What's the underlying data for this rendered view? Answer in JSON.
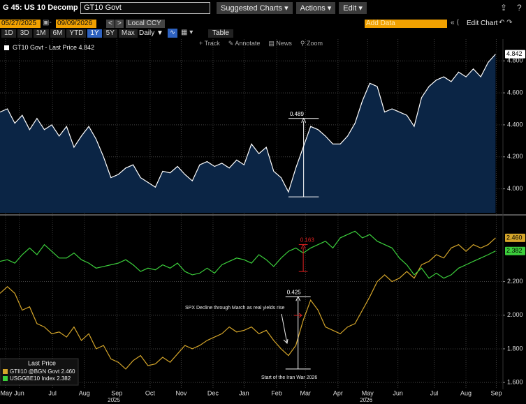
{
  "header": {
    "title": "G 45: US 10 Decomp",
    "security": "GT10 Govt",
    "menus": [
      "Suggested Charts",
      "Actions",
      "Edit"
    ]
  },
  "controls": {
    "start_date": "05/27/2025",
    "end_date": "09/09/2026",
    "currency": "Local CCY",
    "periods": [
      "1D",
      "3D",
      "1M",
      "6M",
      "YTD",
      "1Y",
      "5Y",
      "Max"
    ],
    "frequency": "Daily",
    "table": "Table",
    "add_data": "Add Data",
    "edit_chart": "Edit Chart",
    "tools": [
      "Track",
      "Annotate",
      "News",
      "Zoom"
    ]
  },
  "chart_data": [
    {
      "type": "area",
      "xlim": [
        0,
        68
      ],
      "ylim": [
        3.85,
        4.91
      ],
      "yticks": [
        {
          "value": 4.0,
          "label": "4.000"
        },
        {
          "value": 4.2,
          "label": "4.200"
        },
        {
          "value": 4.4,
          "label": "4.400"
        },
        {
          "value": 4.6,
          "label": "4.600"
        },
        {
          "value": 4.8,
          "label": "4.800"
        }
      ],
      "grid": true,
      "area_color": "#0b2545",
      "series": [
        {
          "name": "GT10 Govt - Last Price",
          "color": "#ffffff",
          "values": [
            4.48,
            4.5,
            4.41,
            4.46,
            4.37,
            4.44,
            4.37,
            4.4,
            4.33,
            4.39,
            4.26,
            4.33,
            4.39,
            4.31,
            4.2,
            4.07,
            4.09,
            4.13,
            4.15,
            4.07,
            4.04,
            4.01,
            4.11,
            4.1,
            4.14,
            4.09,
            4.05,
            4.15,
            4.17,
            4.14,
            4.16,
            4.13,
            4.18,
            4.15,
            4.28,
            4.22,
            4.26,
            4.11,
            4.07,
            3.98,
            4.13,
            4.26,
            4.39,
            4.37,
            4.33,
            4.28,
            4.28,
            4.33,
            4.41,
            4.55,
            4.66,
            4.64,
            4.48,
            4.5,
            4.48,
            4.46,
            4.39,
            4.57,
            4.64,
            4.68,
            4.7,
            4.67,
            4.73,
            4.7,
            4.75,
            4.7,
            4.79,
            4.842
          ]
        }
      ],
      "annotations": [
        {
          "text": "0.489",
          "x0": 39,
          "x1": 43.1,
          "y0": 3.95,
          "y1": 4.44,
          "color": "#ffffff"
        }
      ]
    },
    {
      "type": "line",
      "xlim": [
        0,
        68
      ],
      "ylim": [
        1.53,
        2.58
      ],
      "yticks": [
        {
          "value": 1.6,
          "label": "1.600"
        },
        {
          "value": 1.8,
          "label": "1.800"
        },
        {
          "value": 2.0,
          "label": "2.000"
        },
        {
          "value": 2.2,
          "label": "2.200"
        }
      ],
      "grid": true,
      "legend_title": "Last Price",
      "xticks": [
        {
          "value": 0.75,
          "label": "May"
        },
        {
          "value": 2.6,
          "label": "Jun"
        },
        {
          "value": 7.1,
          "label": "Jul"
        },
        {
          "value": 11.4,
          "label": "Aug"
        },
        {
          "value": 15.8,
          "label": "Sep"
        },
        {
          "value": 20.3,
          "label": "Oct"
        },
        {
          "value": 24.5,
          "label": "Nov"
        },
        {
          "value": 28.8,
          "label": "Dec"
        },
        {
          "value": 33,
          "label": "Jan"
        },
        {
          "value": 37.4,
          "label": "Feb"
        },
        {
          "value": 41.3,
          "label": "Mar"
        },
        {
          "value": 45.7,
          "label": "Apr"
        },
        {
          "value": 49.7,
          "label": "May"
        },
        {
          "value": 53.8,
          "label": "Jun"
        },
        {
          "value": 58.7,
          "label": "Jul"
        },
        {
          "value": 63,
          "label": "Aug"
        },
        {
          "value": 67.1,
          "label": "Sep"
        }
      ],
      "year_ticks": [
        {
          "value": 15.4,
          "label": "2025"
        },
        {
          "value": 49.5,
          "label": "2026"
        }
      ],
      "series": [
        {
          "name": "GTII10 @BGN Govt",
          "color": "#d4a52a",
          "values": [
            2.13,
            2.17,
            2.13,
            2.03,
            2.05,
            1.95,
            1.93,
            1.89,
            1.9,
            1.87,
            1.93,
            1.85,
            1.89,
            1.8,
            1.82,
            1.74,
            1.72,
            1.68,
            1.73,
            1.76,
            1.7,
            1.71,
            1.75,
            1.72,
            1.77,
            1.82,
            1.8,
            1.82,
            1.85,
            1.87,
            1.89,
            1.93,
            1.9,
            1.91,
            1.93,
            1.89,
            1.91,
            1.85,
            1.8,
            1.76,
            1.82,
            1.97,
            2.09,
            2.03,
            1.93,
            1.91,
            1.89,
            1.93,
            1.95,
            2.03,
            2.11,
            2.2,
            2.24,
            2.2,
            2.22,
            2.26,
            2.22,
            2.3,
            2.32,
            2.36,
            2.34,
            2.4,
            2.42,
            2.38,
            2.42,
            2.4,
            2.42,
            2.46
          ],
          "value_labels": [
            null,
            null,
            null,
            null,
            null,
            null,
            null,
            null,
            null,
            null,
            null,
            null,
            null,
            null,
            null,
            null,
            null,
            null,
            null,
            null,
            null,
            null,
            null,
            null,
            null,
            null,
            null,
            null,
            null,
            null,
            null,
            null,
            null,
            null,
            null,
            null,
            null,
            null,
            null,
            null,
            null,
            null,
            null,
            null,
            null,
            null,
            null,
            null,
            null,
            null,
            null,
            null,
            null,
            null,
            null,
            null,
            null,
            null,
            null,
            null,
            null,
            null,
            null,
            null,
            null,
            null,
            null,
            "2.460"
          ]
        },
        {
          "name": "USGGBE10 Index",
          "color": "#3ccf3c",
          "values": [
            2.32,
            2.33,
            2.31,
            2.36,
            2.4,
            2.36,
            2.42,
            2.38,
            2.34,
            2.34,
            2.37,
            2.33,
            2.31,
            2.28,
            2.29,
            2.3,
            2.31,
            2.33,
            2.3,
            2.26,
            2.28,
            2.27,
            2.3,
            2.28,
            2.31,
            2.26,
            2.24,
            2.25,
            2.28,
            2.25,
            2.3,
            2.32,
            2.34,
            2.33,
            2.31,
            2.36,
            2.33,
            2.29,
            2.34,
            2.38,
            2.4,
            2.37,
            2.4,
            2.42,
            2.44,
            2.4,
            2.46,
            2.48,
            2.5,
            2.46,
            2.48,
            2.44,
            2.42,
            2.4,
            2.34,
            2.3,
            2.24,
            2.28,
            2.22,
            2.25,
            2.22,
            2.24,
            2.28,
            2.3,
            2.32,
            2.34,
            2.36,
            2.382
          ]
        }
      ],
      "annotations": [
        {
          "text": "0.425",
          "x0": 38.6,
          "x1": 42,
          "y0": 1.68,
          "y1": 2.11,
          "color": "#ffffff"
        },
        {
          "text": "0.163",
          "x0": 40.4,
          "x1": 41.6,
          "y0": 2.26,
          "y1": 2.42,
          "color": "#e02020"
        }
      ],
      "notes": [
        "SPX Decline through March as real yields rise",
        "Start of the Iran War 2026"
      ]
    }
  ]
}
